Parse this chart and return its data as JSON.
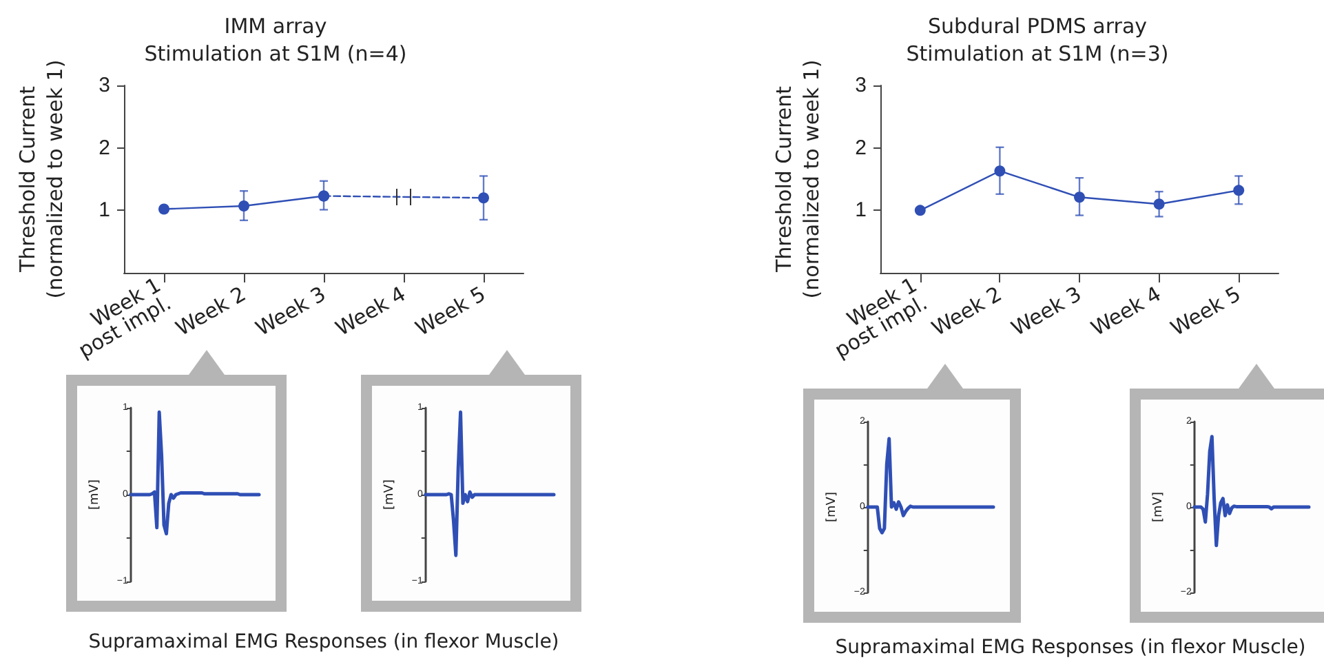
{
  "chart_data": [
    {
      "type": "line",
      "title": "IMM array\nStimulation at S1M (n=4)",
      "ylabel": "Threshold Current\n(normalized to week 1)",
      "categories": [
        "Week 1\npost impl.",
        "Week 2",
        "Week 3",
        "Week 4",
        "Week 5"
      ],
      "ylim": [
        0,
        3
      ],
      "yticks": [
        1,
        2,
        3
      ],
      "grid": false,
      "marker": "circle",
      "series": [
        {
          "color": "#2f4fb5",
          "line_style": "solid",
          "values": [
            1.02,
            1.07,
            1.23,
            null,
            null
          ],
          "errors": [
            null,
            [
              0.84,
              1.31
            ],
            [
              1.01,
              1.47
            ],
            null,
            null
          ]
        },
        {
          "color": "#2f4fb5",
          "line_style": "dashed",
          "values": [
            null,
            null,
            1.23,
            null,
            1.2
          ],
          "errors": [
            null,
            null,
            null,
            null,
            [
              0.85,
              1.55
            ]
          ]
        }
      ]
    },
    {
      "type": "line",
      "title": "Subdural PDMS array\nStimulation at S1M (n=3)",
      "ylabel": "Threshold Current\n(normalized to week 1)",
      "categories": [
        "Week 1\npost impl.",
        "Week 2",
        "Week 3",
        "Week 4",
        "Week 5"
      ],
      "ylim": [
        0,
        3
      ],
      "yticks": [
        1,
        2,
        3
      ],
      "grid": false,
      "marker": "circle",
      "series": [
        {
          "color": "#2f4fb5",
          "line_style": "solid",
          "values": [
            1.0,
            1.63,
            1.21,
            1.1,
            1.32
          ],
          "errors": [
            null,
            [
              1.26,
              2.01
            ],
            [
              0.92,
              1.52
            ],
            [
              0.9,
              1.3
            ],
            [
              1.1,
              1.55
            ]
          ]
        }
      ]
    },
    {
      "type": "line",
      "ylabel": "[mV]",
      "ylim": [
        -1,
        1
      ],
      "yticks": [
        {
          "value": -1,
          "label": "−1"
        },
        {
          "value": -0.5,
          "label": null
        },
        0,
        {
          "value": 0.5,
          "label": null
        },
        1
      ],
      "tick_labels": "y",
      "grid": false,
      "marker": "none",
      "annotations": [
        "Supramaximal EMG Responses (in flexor Muscle)"
      ],
      "categories": [
        null,
        null,
        null,
        null,
        null,
        null,
        null,
        null,
        null,
        null,
        null,
        null,
        null,
        null,
        null,
        null,
        null,
        null,
        null,
        null,
        null,
        null,
        null,
        null,
        null,
        null,
        null,
        null,
        null,
        null,
        null,
        null,
        null,
        null,
        null,
        null,
        null,
        null,
        null,
        null,
        null,
        null,
        null,
        null,
        null,
        null,
        null,
        null,
        null,
        null,
        null,
        null,
        null,
        null,
        null
      ],
      "series": [
        {
          "color": "#2f4fb5",
          "values": [
            0,
            0,
            0,
            0,
            0,
            0,
            0,
            0,
            0,
            0.01,
            0.03,
            -0.38,
            0.95,
            0.45,
            -0.35,
            -0.45,
            -0.1,
            0,
            -0.04,
            0,
            0.01,
            0.02,
            0.02,
            0.02,
            0.02,
            0.02,
            0.02,
            0.02,
            0.02,
            0.02,
            0.02,
            0.01,
            0.01,
            0.01,
            0.01,
            0.01,
            0.01,
            0.01,
            0.01,
            0.01,
            0.01,
            0.01,
            0.01,
            0.01,
            0.01,
            0.01,
            0,
            0,
            0,
            0,
            0,
            0,
            0,
            0,
            0
          ]
        }
      ]
    },
    {
      "type": "line",
      "ylabel": "[mV]",
      "ylim": [
        -1,
        1
      ],
      "yticks": [
        {
          "value": -1,
          "label": "−1"
        },
        {
          "value": -0.5,
          "label": null
        },
        0,
        {
          "value": 0.5,
          "label": null
        },
        1
      ],
      "tick_labels": "y",
      "grid": false,
      "marker": "none",
      "categories": [
        null,
        null,
        null,
        null,
        null,
        null,
        null,
        null,
        null,
        null,
        null,
        null,
        null,
        null,
        null,
        null,
        null,
        null,
        null,
        null,
        null,
        null,
        null,
        null,
        null,
        null,
        null,
        null,
        null,
        null,
        null,
        null,
        null,
        null,
        null,
        null,
        null,
        null,
        null,
        null,
        null,
        null,
        null,
        null,
        null,
        null,
        null,
        null,
        null,
        null,
        null,
        null,
        null,
        null,
        null,
        null
      ],
      "series": [
        {
          "color": "#2f4fb5",
          "values": [
            0,
            0,
            0,
            0,
            0,
            0,
            0,
            0,
            0,
            0,
            0.01,
            0,
            -0.3,
            -0.7,
            0.3,
            0.95,
            -0.1,
            0,
            -0.08,
            0.03,
            -0.03,
            0,
            0,
            0,
            0,
            0,
            0,
            0,
            0,
            0,
            0,
            0,
            0,
            0,
            0,
            0,
            0,
            0,
            0,
            0,
            0,
            0,
            0,
            0,
            0,
            0,
            0,
            0,
            0,
            0,
            0,
            0,
            0,
            0,
            0,
            0
          ]
        }
      ]
    },
    {
      "type": "line",
      "ylabel": "[mV]",
      "ylim": [
        -2,
        2
      ],
      "yticks": [
        {
          "value": -2,
          "label": "−2"
        },
        {
          "value": -1,
          "label": null
        },
        0,
        {
          "value": 1,
          "label": null
        },
        2
      ],
      "tick_labels": "y",
      "grid": false,
      "marker": "none",
      "annotations": [
        "Supramaximal EMG Responses (in flexor Muscle)"
      ],
      "categories": [
        null,
        null,
        null,
        null,
        null,
        null,
        null,
        null,
        null,
        null,
        null,
        null,
        null,
        null,
        null,
        null,
        null,
        null,
        null,
        null,
        null,
        null,
        null,
        null,
        null,
        null,
        null,
        null,
        null,
        null,
        null,
        null,
        null,
        null,
        null,
        null,
        null,
        null,
        null,
        null,
        null,
        null,
        null,
        null,
        null,
        null,
        null,
        null,
        null,
        null,
        null,
        null,
        null,
        null
      ],
      "series": [
        {
          "color": "#2f4fb5",
          "values": [
            0,
            0,
            0,
            0,
            0,
            -0.5,
            -0.6,
            -0.5,
            1.0,
            1.6,
            0,
            0.1,
            -0.05,
            0.12,
            0,
            -0.2,
            -0.1,
            -0.03,
            0.02,
            0,
            0,
            0,
            0,
            0,
            0,
            0,
            0,
            0,
            0,
            0,
            0,
            0,
            0,
            0,
            0,
            0,
            0,
            0,
            0,
            0,
            0,
            0,
            0,
            0,
            0,
            0,
            0,
            0,
            0,
            0,
            0,
            0,
            0,
            0
          ]
        }
      ]
    },
    {
      "type": "line",
      "ylabel": "[mV]",
      "ylim": [
        -2,
        2
      ],
      "yticks": [
        {
          "value": -2,
          "label": "−2"
        },
        {
          "value": -1,
          "label": null
        },
        0,
        {
          "value": 1,
          "label": null
        },
        2
      ],
      "tick_labels": "y",
      "grid": false,
      "marker": "none",
      "categories": [
        null,
        null,
        null,
        null,
        null,
        null,
        null,
        null,
        null,
        null,
        null,
        null,
        null,
        null,
        null,
        null,
        null,
        null,
        null,
        null,
        null,
        null,
        null,
        null,
        null,
        null,
        null,
        null,
        null,
        null,
        null,
        null,
        null,
        null,
        null,
        null,
        null,
        null,
        null,
        null,
        null,
        null,
        null,
        null,
        null,
        null,
        null,
        null,
        null,
        null,
        null,
        null,
        null
      ],
      "series": [
        {
          "color": "#2f4fb5",
          "values": [
            0,
            0,
            0,
            0,
            -0.05,
            -0.35,
            0.3,
            1.3,
            1.65,
            0.2,
            -0.9,
            -0.2,
            0.1,
            0.2,
            -0.2,
            0.05,
            -0.15,
            -0.02,
            0.02,
            0.01,
            0.01,
            0.01,
            0.01,
            0.01,
            0.01,
            0.01,
            0.01,
            0.01,
            0.01,
            0.01,
            0.01,
            0.01,
            0.01,
            0.01,
            0,
            -0.04,
            0,
            0,
            0,
            0,
            0,
            0,
            0,
            0,
            0,
            0,
            0,
            0,
            0,
            0,
            0,
            0,
            0
          ]
        }
      ]
    }
  ]
}
